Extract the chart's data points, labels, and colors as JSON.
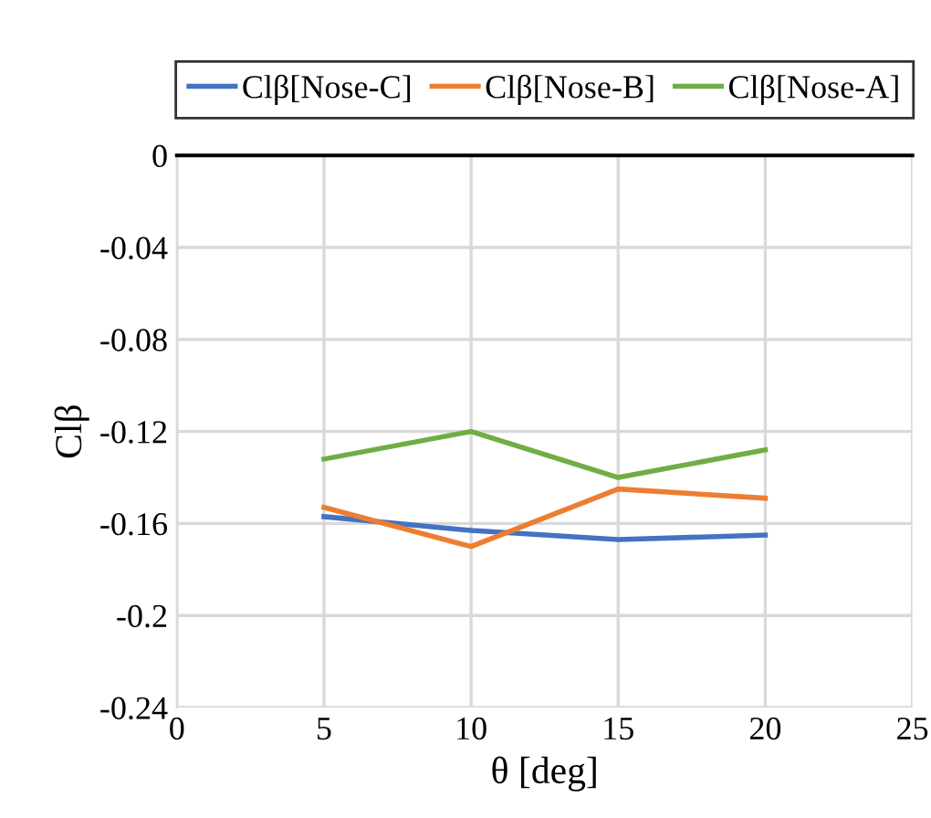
{
  "chart_data": {
    "type": "line",
    "xlabel": "θ [deg]",
    "ylabel": "Clβ",
    "x": [
      5,
      10,
      15,
      20
    ],
    "series": [
      {
        "name": "Clβ[Nose-C]",
        "color": "#4472c4",
        "values": [
          -0.157,
          -0.163,
          -0.167,
          -0.165
        ]
      },
      {
        "name": "Clβ[Nose-B]",
        "color": "#ed7d31",
        "values": [
          -0.153,
          -0.17,
          -0.145,
          -0.149
        ]
      },
      {
        "name": "Clβ[Nose-A]",
        "color": "#70ad47",
        "values": [
          -0.132,
          -0.12,
          -0.14,
          -0.128
        ]
      }
    ],
    "xlim": [
      0,
      25
    ],
    "xticks": [
      0,
      5,
      10,
      15,
      20,
      25
    ],
    "ylim": [
      -0.24,
      0
    ],
    "yticks": [
      -0.24,
      -0.2,
      -0.16,
      -0.12,
      -0.08,
      -0.04,
      0
    ],
    "grid": true,
    "legend": "top",
    "marker": "none",
    "line_style": "solid"
  }
}
